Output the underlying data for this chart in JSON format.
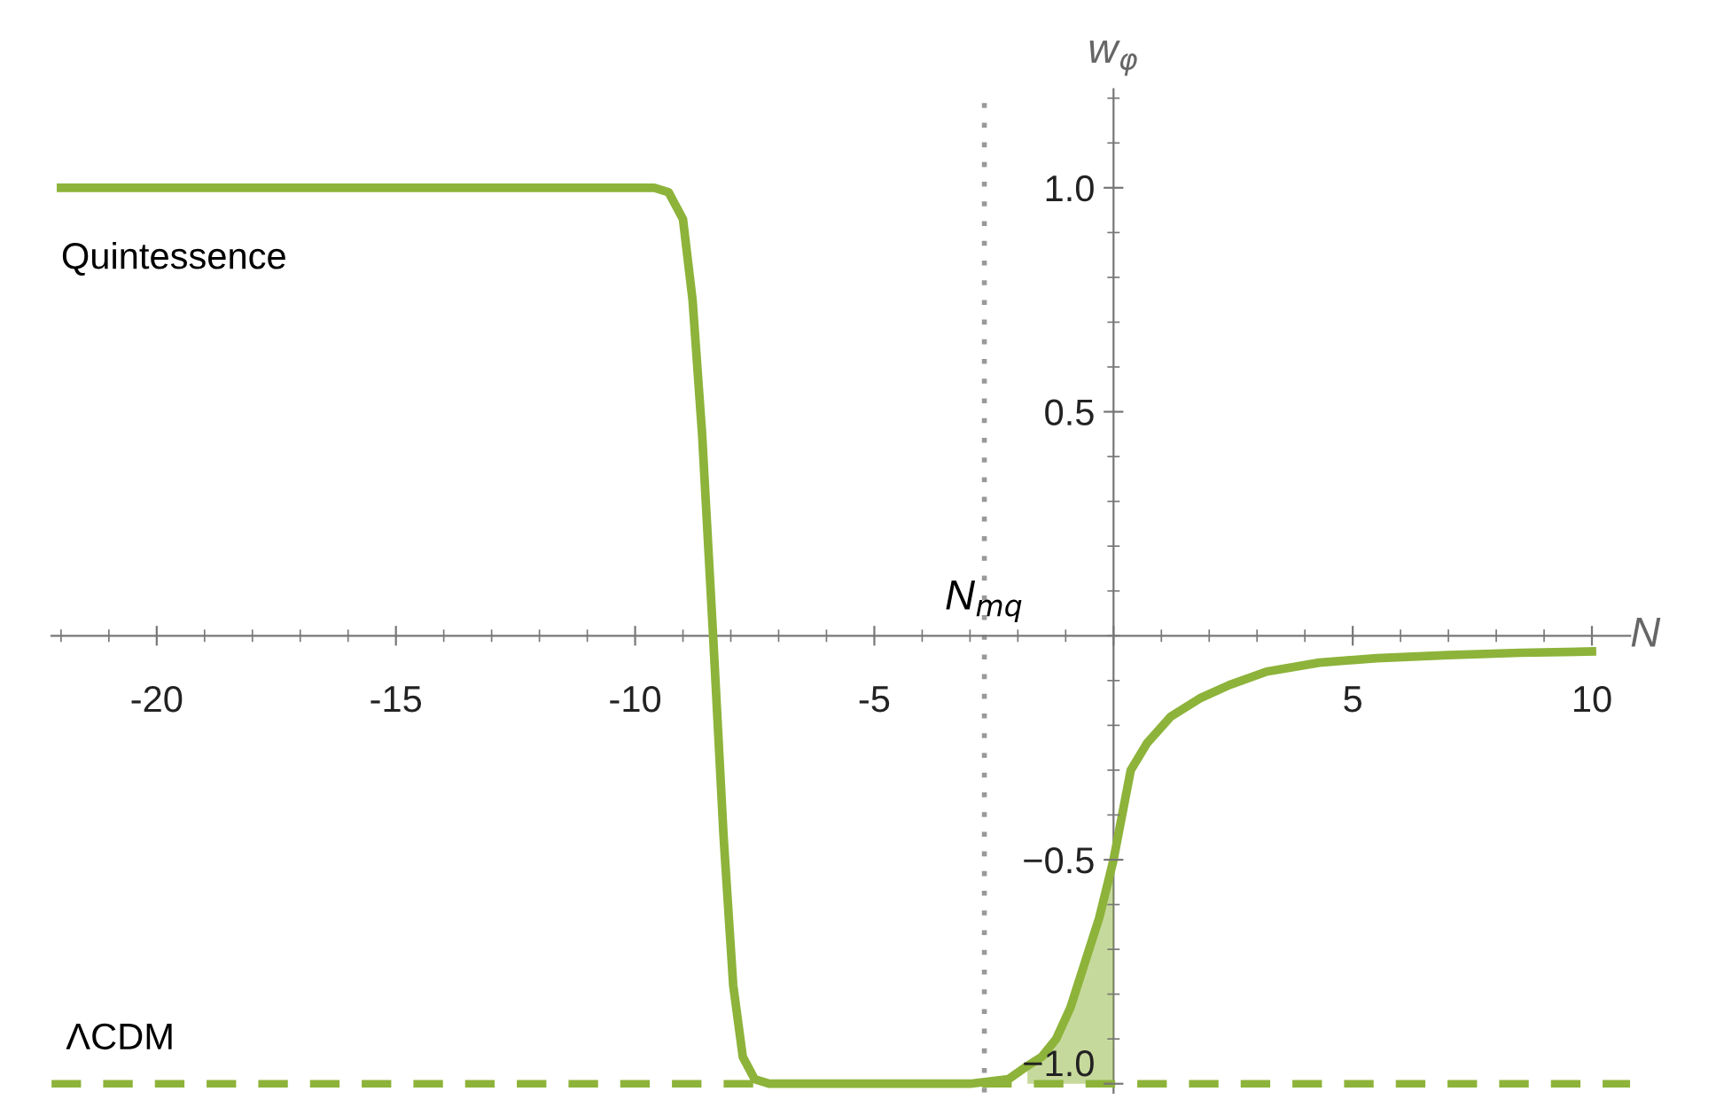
{
  "chart_data": {
    "type": "line",
    "xlabel": "N",
    "ylabel": "w$_{φ}$",
    "xlim": [
      -22.2,
      10.8
    ],
    "ylim": [
      -1.02,
      1.22
    ],
    "xticks": [
      -20,
      -15,
      -10,
      -5,
      {
        "value": 0,
        "label": null
      },
      5,
      10
    ],
    "yticks": [
      {
        "value": -1,
        "label": "−1.0"
      },
      {
        "value": -0.5,
        "label": "−0.5"
      },
      {
        "value": 0.5,
        "label": "0.5"
      },
      {
        "value": 1,
        "label": "1.0"
      }
    ],
    "grid": false,
    "line_style": "solid",
    "marker": "none",
    "series": [
      {
        "color": "#8db33a",
        "x": [
          -22,
          -12,
          -9.6,
          -9.3,
          -9.0,
          -8.8,
          -8.6,
          -8.37,
          -8.15,
          -7.95,
          -7.75,
          -7.5,
          -7.2,
          -5,
          -3,
          -2.2,
          -1.8,
          -1.5,
          -1.2,
          -0.9,
          -0.6,
          -0.3,
          0,
          0.36,
          0.7,
          1.2,
          1.8,
          2.42,
          3.2,
          4.3,
          5.5,
          7,
          8.5,
          10
        ],
        "values": [
          1,
          1,
          1,
          0.99,
          0.93,
          0.75,
          0.45,
          0,
          -0.45,
          -0.78,
          -0.94,
          -0.99,
          -1,
          -1,
          -1,
          -0.99,
          -0.96,
          -0.94,
          -0.9,
          -0.83,
          -0.73,
          -0.63,
          -0.5,
          -0.3,
          -0.24,
          -0.18,
          -0.14,
          -0.11,
          -0.08,
          -0.06,
          -0.05,
          -0.043,
          -0.038,
          -0.035
        ],
        "lower": [
          null,
          null,
          null,
          null,
          null,
          null,
          null,
          null,
          null,
          null,
          null,
          null,
          null,
          null,
          null,
          null,
          -1,
          -1,
          -1,
          -1,
          -1,
          -1,
          -1,
          null,
          null,
          null,
          null,
          null,
          null,
          null,
          null,
          null,
          null,
          null
        ],
        "upper": [
          null,
          null,
          null,
          null,
          null,
          null,
          null,
          null,
          null,
          null,
          null,
          null,
          null,
          null,
          null,
          null,
          -0.96,
          -0.94,
          -0.9,
          -0.83,
          -0.73,
          -0.63,
          -0.5,
          null,
          null,
          null,
          null,
          null,
          null,
          null,
          null,
          null,
          null,
          null
        ]
      }
    ],
    "ref_lines": [
      {
        "axis": "y",
        "value": -1,
        "label": "ΛCDM",
        "color": "#8db33a",
        "line_style": "dashed"
      },
      {
        "axis": "x",
        "value": -2.7,
        "label": "N$_{mq}$",
        "color": "#999999",
        "line_style": "dotted"
      }
    ],
    "annotations": [
      {
        "text": "Quintessence",
        "x": -22,
        "y": 1
      }
    ]
  }
}
